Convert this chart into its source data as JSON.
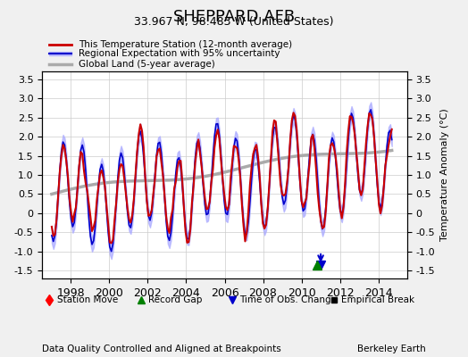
{
  "title": "SHEPPARD AFB",
  "subtitle": "33.967 N, 98.483 W (United States)",
  "ylabel": "Temperature Anomaly (°C)",
  "xlabel_note": "Data Quality Controlled and Aligned at Breakpoints",
  "credit": "Berkeley Earth",
  "ylim": [
    -1.7,
    3.7
  ],
  "yticks": [
    -1.5,
    -1.0,
    -0.5,
    0,
    0.5,
    1.0,
    1.5,
    2.0,
    2.5,
    3.0,
    3.5
  ],
  "xlim": [
    1996.5,
    2015.5
  ],
  "xticks": [
    1998,
    2000,
    2002,
    2004,
    2006,
    2008,
    2010,
    2012,
    2014
  ],
  "bg_color": "#f0f0f0",
  "plot_bg_color": "#ffffff",
  "station_color": "#cc0000",
  "regional_color": "#0000cc",
  "regional_fill_color": "#aaaaff",
  "global_color": "#aaaaaa",
  "legend_entries": [
    "This Temperature Station (12-month average)",
    "Regional Expectation with 95% uncertainty",
    "Global Land (5-year average)"
  ],
  "marker_note": true,
  "obs_change_year": 2011.0
}
